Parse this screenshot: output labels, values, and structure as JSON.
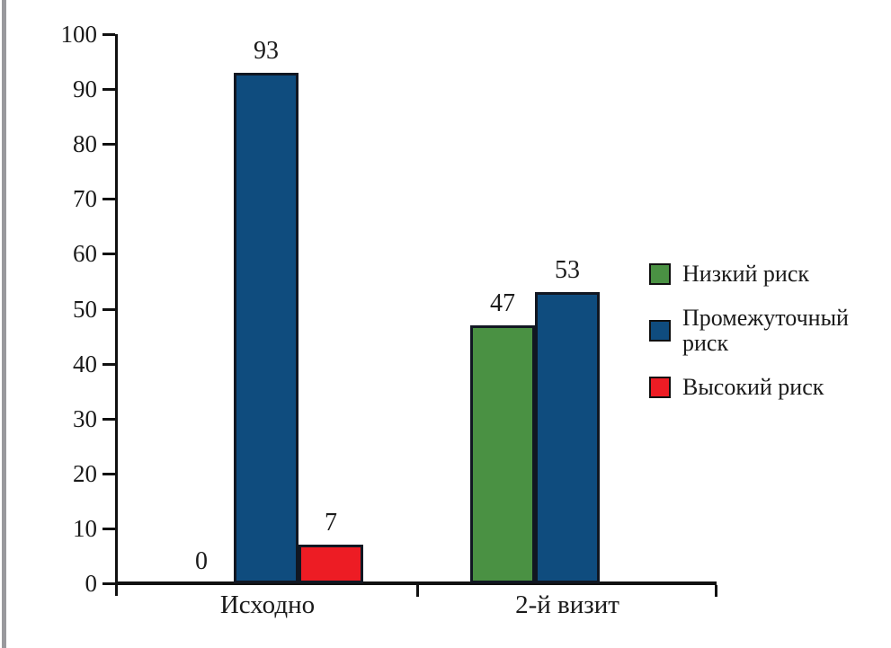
{
  "page": {
    "background_color": "#ffffff",
    "left_strip_color": "#99999d",
    "axis_color": "#111111",
    "text_color": "#1a1a1a"
  },
  "chart_data": {
    "type": "bar",
    "title": "",
    "xlabel": "",
    "ylabel": "",
    "categories": [
      "Исходно",
      "2-й визит"
    ],
    "series": [
      {
        "key": "low-risk",
        "name": "Низкий риск",
        "color": "#4a9143",
        "values": [
          0,
          47
        ]
      },
      {
        "key": "intermediate-risk",
        "name": "Промежуточный риск",
        "color": "#0f4c7e",
        "values": [
          93,
          53
        ]
      },
      {
        "key": "high-risk",
        "name": "Высокий риск",
        "color": "#ed1c24",
        "values": [
          7,
          null
        ]
      }
    ],
    "value_labels": [
      [
        "0",
        "93",
        "7"
      ],
      [
        "47",
        "53",
        null
      ]
    ],
    "ylim": [
      0,
      100
    ],
    "ytick_step": 10,
    "ytick_labels": [
      "0",
      "10",
      "20",
      "30",
      "40",
      "50",
      "60",
      "70",
      "80",
      "90",
      "100"
    ],
    "grid": false,
    "legend_position": "right-middle",
    "bar_outline_color": "#111722"
  }
}
